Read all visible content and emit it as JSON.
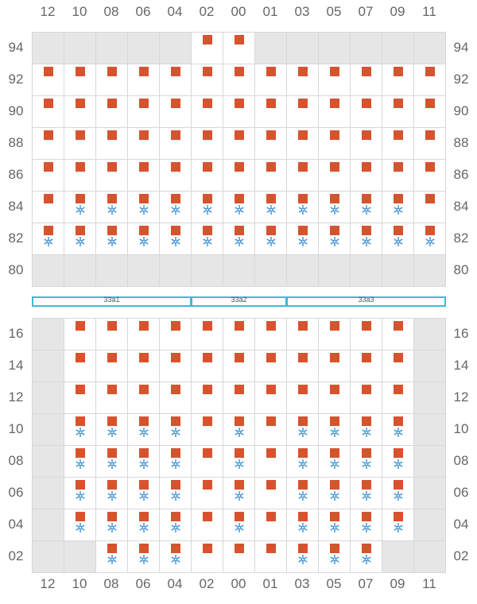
{
  "columns": [
    "12",
    "10",
    "08",
    "06",
    "04",
    "02",
    "00",
    "01",
    "03",
    "05",
    "07",
    "09",
    "11"
  ],
  "colors": {
    "plug": "#d6532e",
    "reefer": "#3a8fd6",
    "unavailable": "#e6e6e7",
    "bay": "#3fb7dd"
  },
  "icons": {
    "plug": "square-plug-icon",
    "reefer": "snowflake-icon"
  },
  "bays": [
    {
      "label": "33a1",
      "from": 0,
      "to": 4
    },
    {
      "label": "33a2",
      "from": 5,
      "to": 7
    },
    {
      "label": "33a3",
      "from": 8,
      "to": 12
    }
  ],
  "deck": {
    "rows": [
      "94",
      "92",
      "90",
      "88",
      "86",
      "84",
      "82",
      "80"
    ],
    "cells": [
      "XXXXXPPXXXXXX",
      "PPPPPPPPPPPPP",
      "PPPPPPPPPPPPP",
      "PPPPPPPPPPPPP",
      "PPPPPPPPPPPPP",
      "PBBBBBBBBBBBP",
      "BBBBBBBBBBBBB",
      "XXXXXXXXXXXXX"
    ]
  },
  "hold": {
    "rows": [
      "16",
      "14",
      "12",
      "10",
      "08",
      "06",
      "04",
      "02"
    ],
    "cells": [
      "XPPPPPPPPPPPX",
      "XPPPPPPPPPPPX",
      "XPPPPPPPPPPPX",
      "XBBBBPBPBBBBX",
      "XBBBBPBPBBBBX",
      "XBBBBPBPBBBBX",
      "XBBBBPBPBBBBX",
      "XXBBBPPPBBBXX"
    ]
  }
}
